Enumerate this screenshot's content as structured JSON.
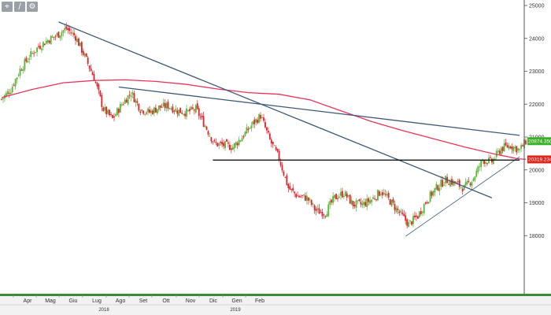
{
  "toolbar": {
    "icons": [
      "crosshair-icon",
      "draw-line-icon",
      "settings-icon"
    ],
    "glyphs": [
      "⌖",
      "∕",
      "⚙"
    ]
  },
  "colors": {
    "up_candle": "#59b535",
    "down_candle": "#e0202a",
    "moving_average": "#e8345a",
    "trendline": "#3d5a78",
    "support": "#000000",
    "price_badge": "#3cae2a",
    "ma_badge": "#e2231a"
  },
  "chart_data": {
    "type": "candlestick",
    "instrument_note": "",
    "y_ticks": [
      18000,
      19000,
      20000,
      21000,
      22000,
      23000,
      24000,
      25000
    ],
    "ylim": [
      17700,
      25200
    ],
    "x_month_labels": [
      "Apr",
      "Mag",
      "Giu",
      "Lug",
      "Ago",
      "Set",
      "Ott",
      "Nov",
      "Dic",
      "Gen",
      "Feb"
    ],
    "x_year_labels": [
      "2018",
      "2019"
    ],
    "badges": {
      "last_price": "20874.3501",
      "moving_average_value": "20319.2343"
    },
    "close_path": [
      [
        0,
        22150
      ],
      [
        6,
        22450
      ],
      [
        12,
        23050
      ],
      [
        18,
        23450
      ],
      [
        24,
        23750
      ],
      [
        30,
        23950
      ],
      [
        36,
        24100
      ],
      [
        42,
        24300
      ],
      [
        48,
        24050
      ],
      [
        54,
        23450
      ],
      [
        60,
        22800
      ],
      [
        66,
        21850
      ],
      [
        72,
        21550
      ],
      [
        78,
        22000
      ],
      [
        84,
        22350
      ],
      [
        90,
        21850
      ],
      [
        96,
        21750
      ],
      [
        102,
        21900
      ],
      [
        108,
        21950
      ],
      [
        114,
        21800
      ],
      [
        120,
        21750
      ],
      [
        126,
        21850
      ],
      [
        132,
        21350
      ],
      [
        138,
        20800
      ],
      [
        144,
        20750
      ],
      [
        150,
        20700
      ],
      [
        156,
        21000
      ],
      [
        162,
        21350
      ],
      [
        168,
        21650
      ],
      [
        174,
        20900
      ],
      [
        180,
        20350
      ],
      [
        186,
        19450
      ],
      [
        192,
        19200
      ],
      [
        198,
        19150
      ],
      [
        204,
        18750
      ],
      [
        210,
        18700
      ],
      [
        216,
        19150
      ],
      [
        222,
        19300
      ],
      [
        228,
        18950
      ],
      [
        234,
        18950
      ],
      [
        240,
        19100
      ],
      [
        246,
        19350
      ],
      [
        252,
        19050
      ],
      [
        258,
        18700
      ],
      [
        264,
        18350
      ],
      [
        270,
        18600
      ],
      [
        276,
        19100
      ],
      [
        282,
        19450
      ],
      [
        288,
        19700
      ],
      [
        294,
        19600
      ],
      [
        300,
        19450
      ],
      [
        306,
        19750
      ],
      [
        312,
        20300
      ],
      [
        318,
        20250
      ],
      [
        324,
        20650
      ],
      [
        330,
        20750
      ],
      [
        336,
        20600
      ],
      [
        340,
        20870
      ]
    ],
    "moving_average": [
      [
        0,
        22200
      ],
      [
        20,
        22450
      ],
      [
        40,
        22650
      ],
      [
        60,
        22720
      ],
      [
        80,
        22740
      ],
      [
        100,
        22690
      ],
      [
        120,
        22600
      ],
      [
        140,
        22460
      ],
      [
        160,
        22350
      ],
      [
        180,
        22300
      ],
      [
        200,
        22130
      ],
      [
        220,
        21800
      ],
      [
        240,
        21470
      ],
      [
        260,
        21200
      ],
      [
        280,
        20950
      ],
      [
        300,
        20700
      ],
      [
        320,
        20480
      ],
      [
        335,
        20340
      ],
      [
        340,
        20320
      ]
    ],
    "trendlines": [
      {
        "from": [
          37,
          24500
        ],
        "to": [
          318,
          19150
        ]
      },
      {
        "from": [
          76,
          22520
        ],
        "to": [
          336,
          21050
        ]
      },
      {
        "from": [
          262,
          17980
        ],
        "to": [
          336,
          20400
        ]
      }
    ],
    "horizontal_level": {
      "value": 20300,
      "from": 137,
      "to": 336
    },
    "month_positions": [
      17,
      46,
      75,
      105,
      135,
      164,
      193,
      224,
      253,
      283,
      312
    ],
    "year_positions": [
      132,
      299
    ],
    "x_range": [
      0,
      340
    ]
  }
}
